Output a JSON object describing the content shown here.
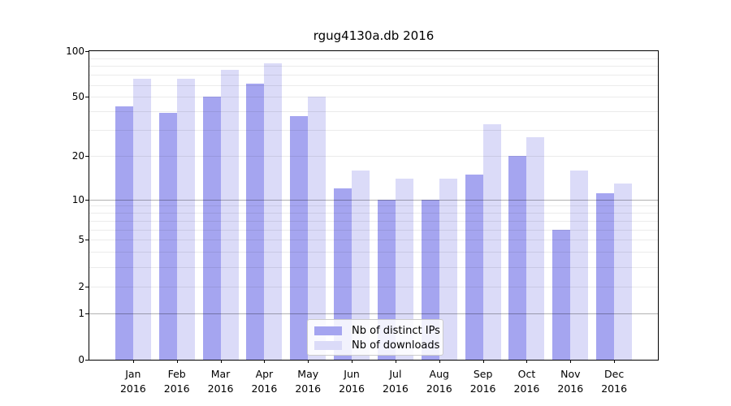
{
  "title": "rgug4130a.db 2016",
  "chart_data": {
    "type": "bar",
    "scale": "log1p",
    "title": "rgug4130a.db 2016",
    "xlabel": "",
    "ylabel": "",
    "categories": [
      "Jan",
      "Feb",
      "Mar",
      "Apr",
      "May",
      "Jun",
      "Jul",
      "Aug",
      "Sep",
      "Oct",
      "Nov",
      "Dec"
    ],
    "category_year": "2016",
    "series": [
      {
        "name": "Nb of distinct IPs",
        "color": "#a5a5f0",
        "values": [
          43,
          39,
          50,
          61,
          37,
          12,
          10,
          10,
          15,
          20,
          6,
          11
        ]
      },
      {
        "name": "Nb of downloads",
        "color": "#dbdbf8",
        "values": [
          66,
          66,
          75,
          83,
          50,
          16,
          14,
          14,
          33,
          27,
          16,
          13
        ]
      }
    ],
    "ylim": [
      0,
      100
    ],
    "y_ticks": [
      100,
      50,
      20,
      10,
      5,
      2,
      1,
      0
    ],
    "y_gridlines_major": [
      10,
      1
    ],
    "y_gridlines_minor": [
      90,
      80,
      70,
      60,
      50,
      40,
      30,
      20,
      9,
      8,
      7,
      6,
      5,
      4,
      3,
      2
    ],
    "grid": true,
    "legend_position": "lower center"
  }
}
